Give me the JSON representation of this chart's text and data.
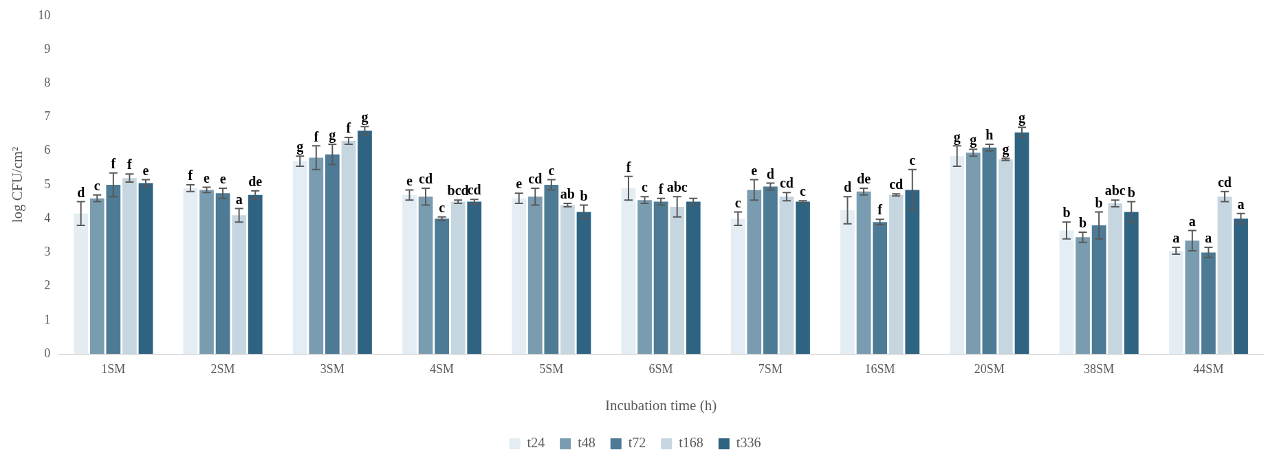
{
  "chart_data": {
    "type": "bar",
    "xlabel": "Incubation time (h)",
    "ylabel": "log CFU/cm²",
    "categories": [
      "1SM",
      "2SM",
      "3SM",
      "4SM",
      "5SM",
      "6SM",
      "7SM",
      "16SM",
      "20SM",
      "38SM",
      "44SM"
    ],
    "ylim": [
      0,
      10
    ],
    "yticks": [
      0,
      1,
      2,
      3,
      4,
      5,
      6,
      7,
      8,
      9,
      10
    ],
    "grid": false,
    "legend": "bottom",
    "series": [
      {
        "name": "t24",
        "color": "#e3edf3",
        "values": [
          4.15,
          4.9,
          5.7,
          4.7,
          4.6,
          4.9,
          4.0,
          4.25,
          5.85,
          3.65,
          3.05
        ],
        "errors": [
          0.35,
          0.1,
          0.15,
          0.15,
          0.15,
          0.35,
          0.2,
          0.4,
          0.3,
          0.25,
          0.1
        ],
        "value_labels": [
          "d",
          "f",
          "g",
          "e",
          "e",
          "f",
          "c",
          "d",
          "g",
          "b",
          "a"
        ]
      },
      {
        "name": "t48",
        "color": "#7a9cb0",
        "values": [
          4.6,
          4.85,
          5.8,
          4.65,
          4.65,
          4.55,
          4.85,
          4.8,
          5.95,
          3.45,
          3.35
        ],
        "errors": [
          0.1,
          0.08,
          0.35,
          0.25,
          0.25,
          0.1,
          0.3,
          0.1,
          0.1,
          0.15,
          0.3
        ],
        "value_labels": [
          "c",
          "e",
          "f",
          "cd",
          "cd",
          "c",
          "e",
          "de",
          "g",
          "b",
          "a"
        ]
      },
      {
        "name": "t72",
        "color": "#4d7a94",
        "values": [
          5.0,
          4.75,
          5.9,
          4.0,
          5.0,
          4.5,
          4.95,
          3.9,
          6.1,
          3.8,
          3.0
        ],
        "errors": [
          0.35,
          0.15,
          0.3,
          0.05,
          0.15,
          0.1,
          0.1,
          0.08,
          0.1,
          0.4,
          0.15
        ],
        "value_labels": [
          "f",
          "e",
          "g",
          "c",
          "c",
          "f",
          "d",
          "f",
          "h",
          "b",
          "a"
        ]
      },
      {
        "name": "t168",
        "color": "#c6d6e0",
        "values": [
          5.2,
          4.1,
          6.3,
          4.5,
          4.4,
          4.35,
          4.65,
          4.7,
          5.75,
          4.45,
          4.65
        ],
        "errors": [
          0.12,
          0.2,
          0.1,
          0.05,
          0.05,
          0.3,
          0.12,
          0.03,
          0.03,
          0.1,
          0.15
        ],
        "value_labels": [
          "f",
          "a",
          "f",
          "bcd",
          "ab",
          "abc",
          "cd",
          "cd",
          "g",
          "abc",
          "cd"
        ]
      },
      {
        "name": "t336",
        "color": "#2f6382",
        "values": [
          5.05,
          4.7,
          6.6,
          4.5,
          4.2,
          4.5,
          4.5,
          4.85,
          6.55,
          4.2,
          4.0
        ],
        "errors": [
          0.1,
          0.12,
          0.12,
          0.07,
          0.2,
          0.1,
          0.03,
          0.6,
          0.15,
          0.3,
          0.15
        ],
        "value_labels": [
          "e",
          "de",
          "g",
          "cd",
          "b",
          null,
          "c",
          "c",
          "g",
          "b",
          "a"
        ]
      }
    ]
  }
}
